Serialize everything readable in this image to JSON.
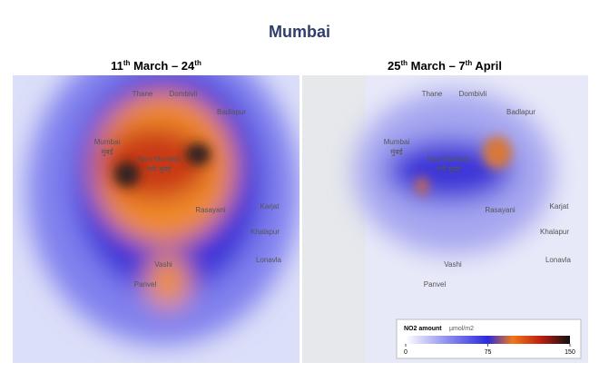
{
  "header": {
    "title": "Mumbai"
  },
  "panels": [
    {
      "title_parts": [
        "11",
        "th",
        " March – 24",
        "th"
      ]
    },
    {
      "title_parts": [
        "25",
        "th",
        " March – 7",
        "th",
        " April"
      ]
    }
  ],
  "map_labels": [
    "Thane",
    "Dombivli",
    "Badlapur",
    "Mumbai",
    "मुंबई",
    "Navi Mumbai",
    "नवी मुंबई",
    "Rasayani",
    "Vashi",
    "Panvel",
    "Karjat",
    "Khalapur",
    "Lonavla"
  ],
  "legend": {
    "title": "NO2 amount",
    "unit": "µmol/m2",
    "lim": [
      0,
      150
    ],
    "ticks": [
      0,
      75,
      150
    ]
  }
}
